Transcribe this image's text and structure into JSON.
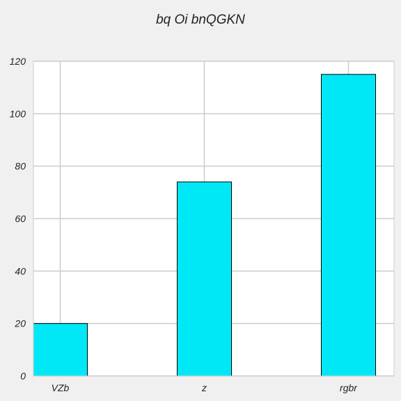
{
  "chart_data": {
    "type": "bar",
    "title": "bq Oi bnQGKN",
    "xlabel": "",
    "ylabel": "",
    "categories": [
      "VZb",
      "z",
      "rgbr"
    ],
    "values": [
      20,
      74,
      115
    ],
    "ylim": [
      0,
      120
    ],
    "yticks": [
      0,
      20,
      40,
      60,
      80,
      100,
      120
    ],
    "grid": true,
    "bar_color": "#00e8f5",
    "bar_edge_color": "#000000",
    "background_color": "#f0f0f0",
    "plot_background_color": "#ffffff",
    "grid_color": "#cccccc"
  }
}
